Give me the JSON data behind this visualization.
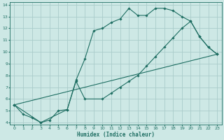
{
  "xlabel": "Humidex (Indice chaleur)",
  "xlim": [
    -0.5,
    23.5
  ],
  "ylim": [
    3.8,
    14.2
  ],
  "yticks": [
    4,
    5,
    6,
    7,
    8,
    9,
    10,
    11,
    12,
    13,
    14
  ],
  "xticks": [
    0,
    1,
    2,
    3,
    4,
    5,
    6,
    7,
    8,
    9,
    10,
    11,
    12,
    13,
    14,
    15,
    16,
    17,
    18,
    19,
    20,
    21,
    22,
    23
  ],
  "bg_color": "#cde8e5",
  "grid_color": "#aaccca",
  "line_color": "#1e6e62",
  "line1_x": [
    0,
    1,
    2,
    3,
    4,
    5,
    6,
    7,
    8,
    9,
    10,
    11,
    12,
    13,
    14,
    15,
    16,
    17,
    18,
    19,
    20,
    21,
    22,
    23
  ],
  "line1_y": [
    5.5,
    4.7,
    4.4,
    4.0,
    4.2,
    5.0,
    5.1,
    7.6,
    9.4,
    11.8,
    12.0,
    12.5,
    12.8,
    13.7,
    13.1,
    13.1,
    13.7,
    13.7,
    13.5,
    13.0,
    12.6,
    11.3,
    10.4,
    9.8
  ],
  "line2_x": [
    0,
    3,
    6,
    7,
    8,
    10,
    11,
    12,
    13,
    14,
    15,
    16,
    17,
    18,
    19,
    20,
    21,
    22,
    23
  ],
  "line2_y": [
    5.5,
    4.0,
    5.1,
    7.5,
    6.0,
    6.0,
    6.5,
    7.0,
    7.5,
    8.0,
    8.8,
    9.6,
    10.4,
    11.2,
    12.0,
    12.6,
    11.3,
    10.4,
    9.8
  ],
  "line3_x": [
    0,
    23
  ],
  "line3_y": [
    5.5,
    9.8
  ]
}
